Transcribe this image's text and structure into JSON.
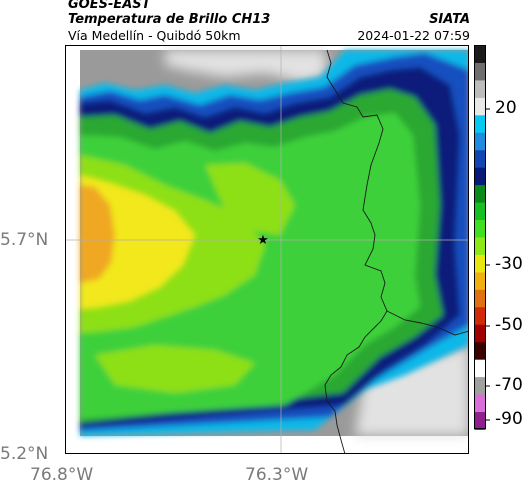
{
  "header": {
    "satellite": "GOES-EAST",
    "product": "Temperatura de Brillo CH13",
    "region": "Vía Medellín - Quibdó 50km",
    "organization": "SIATA",
    "datetime": "2024-01-22 07:59"
  },
  "axes": {
    "lat_labels": [
      "5.7°N",
      "5.2°N"
    ],
    "lon_labels": [
      "76.8°W",
      "76.3°W"
    ]
  },
  "colorbar": {
    "ticks": [
      "20",
      "-30",
      "-50",
      "-70",
      "-90"
    ],
    "colors": [
      "#1a1a1a",
      "#6e6e6e",
      "#bcbcbc",
      "#e9e9e9",
      "#07c8f0",
      "#1e8de0",
      "#1146b4",
      "#071a78",
      "#0a8a18",
      "#16c020",
      "#40e020",
      "#8ee818",
      "#e8e810",
      "#f0b010",
      "#e07010",
      "#d02a08",
      "#a00000",
      "#3a0000",
      "#ffffff",
      "#a0a0a0",
      "#d870d8",
      "#902090"
    ]
  },
  "map_colors": {
    "gray_dark": "#9a9a9a",
    "gray_light": "#e2e2e2",
    "navy": "#0a1a7a",
    "blue": "#1350c0",
    "cyan": "#10b8e8",
    "green_dark": "#2aa830",
    "green": "#3ed03a",
    "yellow_green": "#8ee018",
    "yellow": "#f2e81a",
    "orange": "#f0a820",
    "border": "#1a1a1a",
    "grid": "#b0b0b0"
  }
}
